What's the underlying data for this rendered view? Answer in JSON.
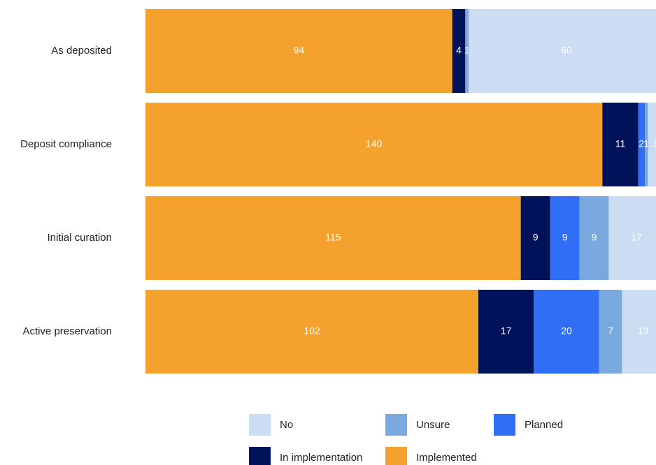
{
  "chart_data": {
    "type": "stacked_barh",
    "categories": [
      "As deposited",
      "Deposit compliance",
      "Initial curation",
      "Active preservation"
    ],
    "series": [
      {
        "name": "Implemented",
        "color": "#f4a12d",
        "values": [
          94,
          140,
          115,
          102
        ]
      },
      {
        "name": "In implementation",
        "color": "#00135a",
        "values": [
          4,
          11,
          9,
          17
        ]
      },
      {
        "name": "Planned",
        "color": "#2f6ef5",
        "values": [
          0,
          2,
          9,
          20
        ]
      },
      {
        "name": "Unsure",
        "color": "#7aa9e0",
        "values": [
          1,
          1,
          9,
          7
        ]
      },
      {
        "name": "No",
        "color": "#ccdcf2",
        "values": [
          60,
          5,
          17,
          13
        ]
      }
    ],
    "xlim": [
      0,
      159
    ]
  }
}
